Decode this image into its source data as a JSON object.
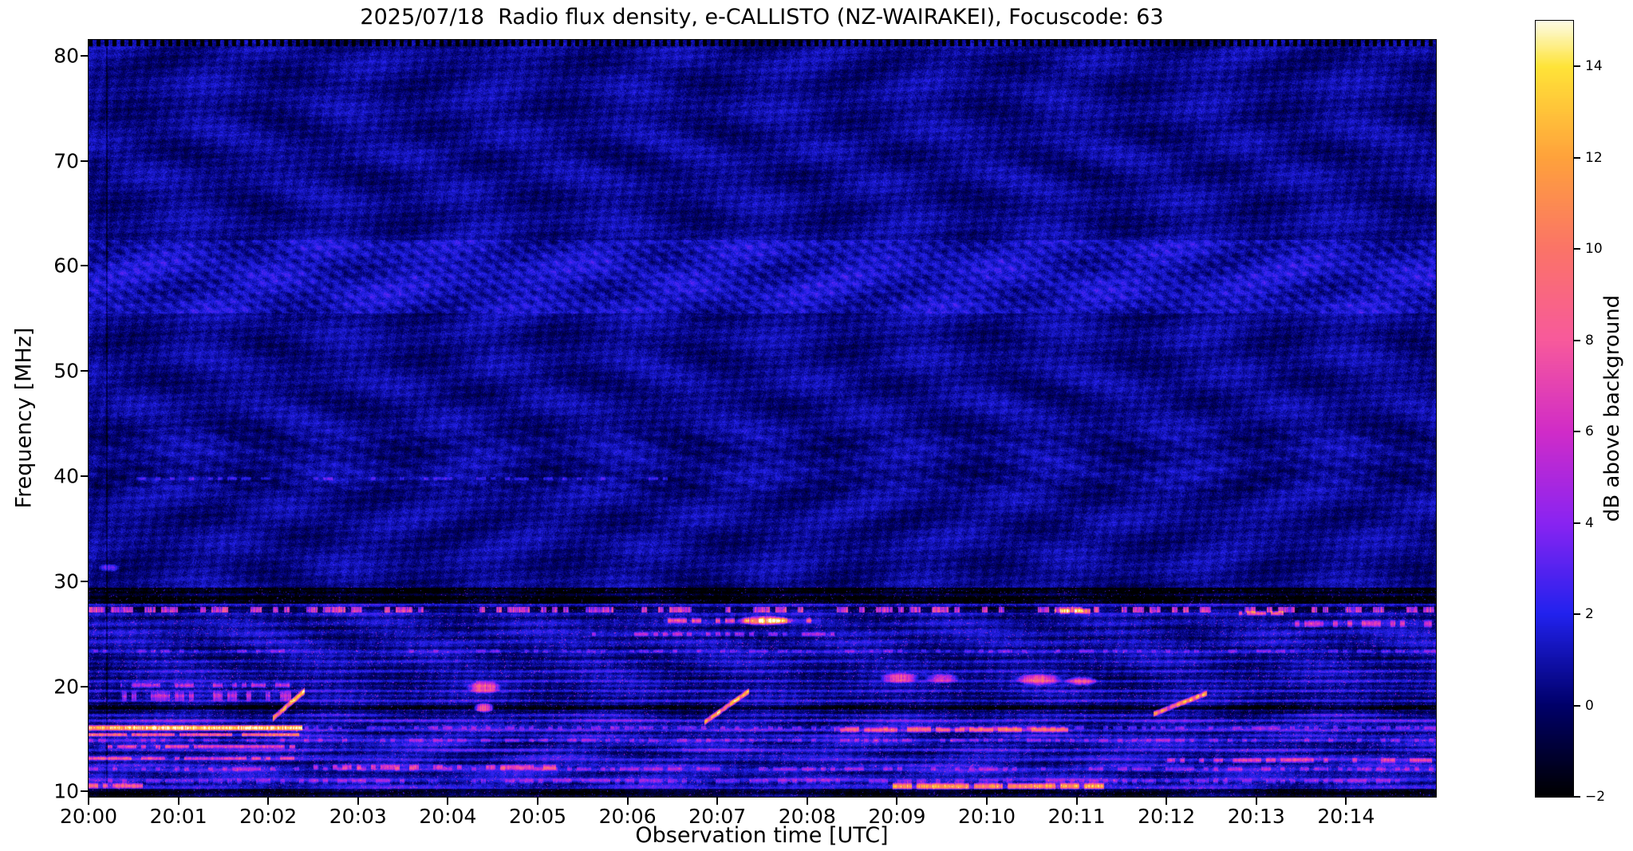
{
  "chart_data": {
    "type": "heatmap",
    "title": "2025/07/18  Radio flux density, e-CALLISTO (NZ-WAIRAKEI), Focuscode: 63",
    "xlabel": "Observation time [UTC]",
    "ylabel": "Frequency [MHz]",
    "x_ticks": [
      "20:00",
      "20:01",
      "20:02",
      "20:03",
      "20:04",
      "20:05",
      "20:06",
      "20:07",
      "20:08",
      "20:09",
      "20:10",
      "20:11",
      "20:12",
      "20:13",
      "20:14"
    ],
    "x_range_minutes": [
      0,
      15
    ],
    "y_ticks": [
      "80",
      "70",
      "60",
      "50",
      "40",
      "30",
      "20",
      "10"
    ],
    "y_tick_values": [
      80,
      70,
      60,
      50,
      40,
      30,
      20,
      10
    ],
    "y_range": [
      9.5,
      81.5
    ],
    "grid": false,
    "legend": "none",
    "colorbar": {
      "label": "dB above background",
      "tick_labels": [
        "14",
        "12",
        "10",
        "8",
        "6",
        "4",
        "2",
        "0",
        "−2"
      ],
      "tick_values": [
        14,
        12,
        10,
        8,
        6,
        4,
        2,
        0,
        -2
      ],
      "range": [
        -2,
        15
      ],
      "colormap_stops": [
        [
          -2,
          "#000000"
        ],
        [
          0,
          "#00006a"
        ],
        [
          2,
          "#2222ee"
        ],
        [
          4,
          "#8a24f2"
        ],
        [
          6,
          "#d12cc8"
        ],
        [
          8,
          "#f85a9c"
        ],
        [
          10,
          "#fb7468"
        ],
        [
          12,
          "#ffa23c"
        ],
        [
          14,
          "#ffe438"
        ],
        [
          15,
          "#fdfce6"
        ]
      ]
    },
    "texture": {
      "background_db": 0.5,
      "ionosphere_band_mhz": [
        55.5,
        62.5
      ],
      "chevron_band_mhz": [
        38.5,
        44.5
      ],
      "rfi_region_max_mhz": 29.5,
      "bright_stripe_max_mhz": 17.4,
      "dark_band_mhz": [
        27.9,
        29.4
      ],
      "dark_band2_mhz": [
        17.55,
        18.3
      ],
      "dark_bottom_max_mhz": 10.3,
      "busy_line_mhz": 27.35,
      "top_dotted_min_mhz": 80.9,
      "vertical_line_minute": 0.2
    },
    "features": [
      {
        "type": "hline",
        "t": [
          0.0,
          2.38
        ],
        "f": 16.1,
        "hw": 0.28,
        "i": 13.5,
        "dash": 0
      },
      {
        "type": "hline",
        "t": [
          2.4,
          15.0
        ],
        "f": 16.1,
        "hw": 0.2,
        "i": 3,
        "dash": 0.5
      },
      {
        "type": "hline",
        "t": [
          0.0,
          2.38
        ],
        "f": 15.45,
        "hw": 0.2,
        "i": 8,
        "dash": 0.15
      },
      {
        "type": "hline",
        "t": [
          0.05,
          2.3
        ],
        "f": 14.3,
        "hw": 0.22,
        "i": 6.5,
        "dash": 0.25
      },
      {
        "type": "hline",
        "t": [
          0.0,
          2.35
        ],
        "f": 13.2,
        "hw": 0.2,
        "i": 5.5,
        "dash": 0.3
      },
      {
        "type": "hline",
        "t": [
          0.35,
          2.25
        ],
        "f": 19.1,
        "hw": 0.55,
        "i": 5,
        "dash": 0.45
      },
      {
        "type": "hline",
        "t": [
          0.35,
          2.25
        ],
        "f": 20.15,
        "hw": 0.3,
        "i": 4.5,
        "dash": 0.5
      },
      {
        "type": "diag",
        "t": [
          2.05,
          2.4
        ],
        "f": [
          17.0,
          19.6
        ],
        "w": 0.35,
        "i": 12
      },
      {
        "type": "blob",
        "t": [
          4.2,
          4.6
        ],
        "f": [
          19.3,
          20.6
        ],
        "i": 8
      },
      {
        "type": "blob",
        "t": [
          4.28,
          4.52
        ],
        "f": [
          17.5,
          18.5
        ],
        "i": 10
      },
      {
        "type": "hline",
        "t": [
          6.4,
          8.15
        ],
        "f": 26.3,
        "hw": 0.3,
        "i": 7,
        "dash": 0.5
      },
      {
        "type": "blob",
        "t": [
          7.2,
          7.85
        ],
        "f": [
          25.8,
          26.8
        ],
        "i": 11
      },
      {
        "type": "diag",
        "t": [
          6.85,
          7.35
        ],
        "f": [
          16.6,
          19.6
        ],
        "w": 0.32,
        "i": 12
      },
      {
        "type": "diag",
        "t": [
          11.85,
          12.45
        ],
        "f": [
          17.4,
          19.4
        ],
        "w": 0.3,
        "i": 10
      },
      {
        "type": "blob",
        "t": [
          8.8,
          9.25
        ],
        "f": [
          20.3,
          21.4
        ],
        "i": 7
      },
      {
        "type": "blob",
        "t": [
          9.3,
          9.7
        ],
        "f": [
          20.3,
          21.3
        ],
        "i": 6
      },
      {
        "type": "blob",
        "t": [
          10.3,
          10.85
        ],
        "f": [
          20.1,
          21.3
        ],
        "i": 8
      },
      {
        "type": "blob",
        "t": [
          10.85,
          11.25
        ],
        "f": [
          20.1,
          21.0
        ],
        "i": 7
      },
      {
        "type": "hline",
        "t": [
          8.95,
          11.3
        ],
        "f": 10.55,
        "hw": 0.35,
        "i": 10,
        "dash": 0.1
      },
      {
        "type": "hline",
        "t": [
          0.0,
          0.6
        ],
        "f": 10.6,
        "hw": 0.3,
        "i": 7,
        "dash": 0.2
      },
      {
        "type": "hline",
        "t": [
          10.75,
          11.15
        ],
        "f": 27.2,
        "hw": 0.3,
        "i": 9,
        "dash": 0.3
      },
      {
        "type": "hline",
        "t": [
          12.8,
          13.3
        ],
        "f": 27.0,
        "hw": 0.25,
        "i": 7,
        "dash": 0.3
      },
      {
        "type": "hline",
        "t": [
          5.6,
          8.3
        ],
        "f": 25.0,
        "hw": 0.25,
        "i": 4,
        "dash": 0.55
      },
      {
        "type": "hline",
        "t": [
          8.3,
          10.9
        ],
        "f": 15.9,
        "hw": 0.3,
        "i": 6,
        "dash": 0.4
      },
      {
        "type": "hline",
        "t": [
          2.5,
          5.2
        ],
        "f": 12.35,
        "hw": 0.3,
        "i": 5,
        "dash": 0.5
      },
      {
        "type": "hline",
        "t": [
          12.0,
          14.95
        ],
        "f": 13.0,
        "hw": 0.3,
        "i": 5,
        "dash": 0.45
      },
      {
        "type": "hline",
        "t": [
          13.4,
          14.95
        ],
        "f": 26.0,
        "hw": 0.4,
        "i": 5,
        "dash": 0.5
      },
      {
        "type": "blob",
        "t": [
          0.1,
          0.35
        ],
        "f": [
          30.9,
          31.7
        ],
        "i": 4
      },
      {
        "type": "hline",
        "t": [
          0.4,
          6.5
        ],
        "f": 39.8,
        "hw": 0.2,
        "i": 2.2,
        "dash": 0.6
      },
      {
        "type": "hline",
        "t": [
          0.0,
          15.0
        ],
        "f": 23.4,
        "hw": 0.22,
        "i": 2.2,
        "dash": 0.6
      },
      {
        "type": "hline",
        "t": [
          0.0,
          15.0
        ],
        "f": 11.0,
        "hw": 0.3,
        "i": 2.5,
        "dash": 0.5
      },
      {
        "type": "hline",
        "t": [
          0.0,
          15.0
        ],
        "f": 12.2,
        "hw": 0.25,
        "i": 3,
        "dash": 0.55
      },
      {
        "type": "hline",
        "t": [
          0.0,
          15.0
        ],
        "f": 14.9,
        "hw": 0.25,
        "i": 2.5,
        "dash": 0.6
      }
    ]
  }
}
